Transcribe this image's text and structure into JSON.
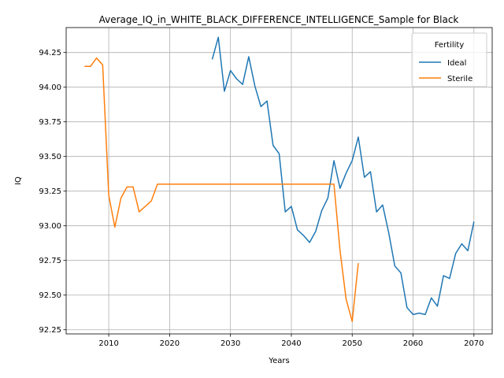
{
  "chart_data": {
    "type": "line",
    "title": "Average_IQ_in_WHITE_BLACK_DIFFERENCE_INTELLIGENCE_Sample for Black",
    "xlabel": "Years",
    "ylabel": "IQ",
    "xlim": [
      2003,
      2073
    ],
    "ylim": [
      92.22,
      94.43
    ],
    "xticks": [
      2010,
      2020,
      2030,
      2040,
      2050,
      2060,
      2070
    ],
    "yticks": [
      92.25,
      92.5,
      92.75,
      93.0,
      93.25,
      93.5,
      93.75,
      94.0,
      94.25
    ],
    "ytick_labels": [
      "92.25",
      "92.50",
      "92.75",
      "93.00",
      "93.25",
      "93.50",
      "93.75",
      "94.00",
      "94.25"
    ],
    "grid": true,
    "legend": {
      "title": "Fertility",
      "placement": "top-right"
    },
    "series": [
      {
        "name": "Ideal",
        "color": "#1f77b4",
        "x": [
          2027,
          2028,
          2029,
          2030,
          2031,
          2032,
          2033,
          2034,
          2035,
          2036,
          2037,
          2038,
          2039,
          2040,
          2041,
          2042,
          2043,
          2044,
          2045,
          2046,
          2047,
          2048,
          2049,
          2050,
          2051,
          2052,
          2053,
          2054,
          2055,
          2056,
          2057,
          2058,
          2059,
          2060,
          2061,
          2062,
          2063,
          2064,
          2065,
          2066,
          2067,
          2068,
          2069,
          2070
        ],
        "y": [
          94.2,
          94.36,
          93.97,
          94.12,
          94.06,
          94.02,
          94.22,
          94.01,
          93.86,
          93.9,
          93.58,
          93.52,
          93.1,
          93.14,
          92.97,
          92.93,
          92.88,
          92.96,
          93.11,
          93.2,
          93.47,
          93.27,
          93.38,
          93.47,
          93.64,
          93.35,
          93.39,
          93.1,
          93.15,
          92.95,
          92.71,
          92.66,
          92.41,
          92.36,
          92.37,
          92.36,
          92.48,
          92.42,
          92.64,
          92.62,
          92.8,
          92.87,
          92.82,
          93.03
        ]
      },
      {
        "name": "Sterile",
        "color": "#ff7f0e",
        "x": [
          2006,
          2007,
          2008,
          2009,
          2010,
          2011,
          2012,
          2013,
          2014,
          2015,
          2016,
          2017,
          2018,
          2019,
          2020,
          2025,
          2030,
          2035,
          2040,
          2045,
          2046,
          2047,
          2048,
          2049,
          2050,
          2051
        ],
        "y": [
          94.15,
          94.15,
          94.21,
          94.16,
          93.22,
          92.99,
          93.2,
          93.28,
          93.28,
          93.1,
          93.14,
          93.18,
          93.3,
          93.3,
          93.3,
          93.3,
          93.3,
          93.3,
          93.3,
          93.3,
          93.3,
          93.3,
          92.82,
          92.47,
          92.31,
          92.73
        ]
      }
    ]
  }
}
